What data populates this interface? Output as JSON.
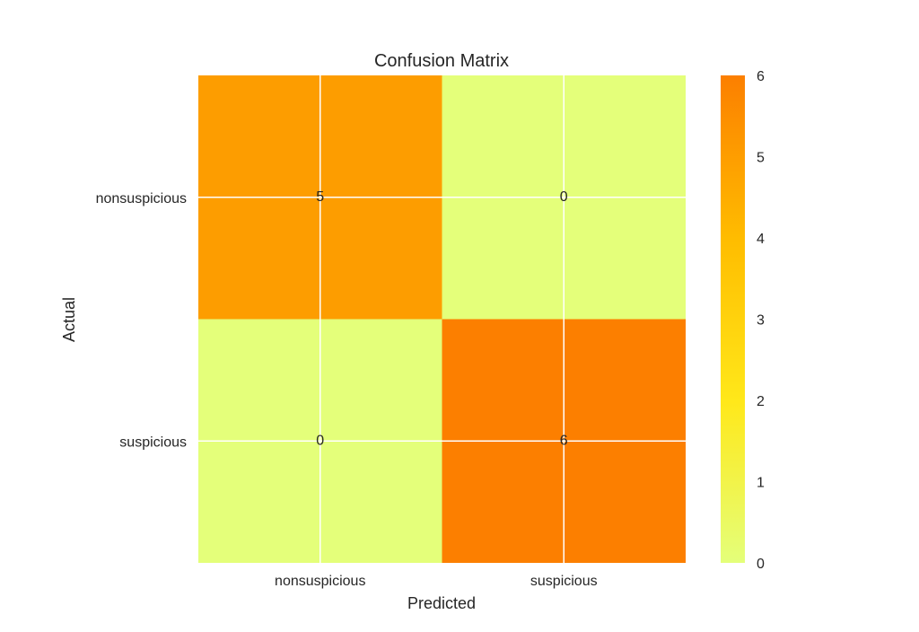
{
  "chart_data": {
    "type": "heatmap",
    "title": "Confusion Matrix",
    "xlabel": "Predicted",
    "ylabel": "Actual",
    "x_categories": [
      "nonsuspicious",
      "suspicious"
    ],
    "y_categories": [
      "nonsuspicious",
      "suspicious"
    ],
    "values": [
      [
        5,
        0
      ],
      [
        0,
        6
      ]
    ],
    "colormap": "Wistia",
    "color_range": [
      0,
      6
    ],
    "colorbar_ticks": [
      0,
      1,
      2,
      3,
      4,
      5,
      6
    ],
    "grid": true,
    "colorbar": "right"
  }
}
